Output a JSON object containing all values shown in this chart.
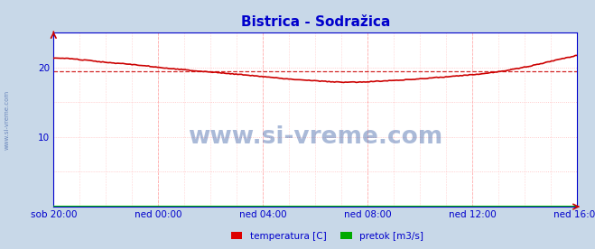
{
  "title": "Bistrica - Sodražica",
  "title_color": "#0000cc",
  "title_fontsize": 11,
  "bg_outer_color": "#c8d8e8",
  "plot_bg_color": "#ffffff",
  "axis_color": "#0000cc",
  "tick_color": "#0000cc",
  "grid_color_v": "#ffaaaa",
  "grid_color_h": "#ffaaaa",
  "watermark": "www.si-vreme.com",
  "watermark_color": "#4466aa",
  "watermark_alpha": 0.45,
  "side_label": "www.si-vreme.com",
  "xlabels": [
    "sob 20:00",
    "ned 00:00",
    "ned 04:00",
    "ned 08:00",
    "ned 12:00",
    "ned 16:00"
  ],
  "ylim": [
    0,
    25
  ],
  "yticks": [
    10,
    20
  ],
  "legend": [
    {
      "label": "temperatura [C]",
      "color": "#dd0000"
    },
    {
      "label": "pretok [m3/s]",
      "color": "#00aa00"
    }
  ],
  "temp_color": "#cc0000",
  "pretok_color": "#00bb00",
  "avg_line_color": "#cc0000",
  "avg_value": 19.4,
  "n_points": 288,
  "pretok_value": 0.05,
  "keypoints_x": [
    0,
    0.05,
    0.1,
    0.15,
    0.2,
    0.27,
    0.35,
    0.42,
    0.5,
    0.57,
    0.62,
    0.65,
    0.7,
    0.78,
    0.87,
    0.93,
    1.0
  ],
  "keypoints_y": [
    21.3,
    21.1,
    20.7,
    20.4,
    20.0,
    19.5,
    19.0,
    18.5,
    18.05,
    17.85,
    18.0,
    18.1,
    18.35,
    18.8,
    19.6,
    20.5,
    21.7
  ]
}
